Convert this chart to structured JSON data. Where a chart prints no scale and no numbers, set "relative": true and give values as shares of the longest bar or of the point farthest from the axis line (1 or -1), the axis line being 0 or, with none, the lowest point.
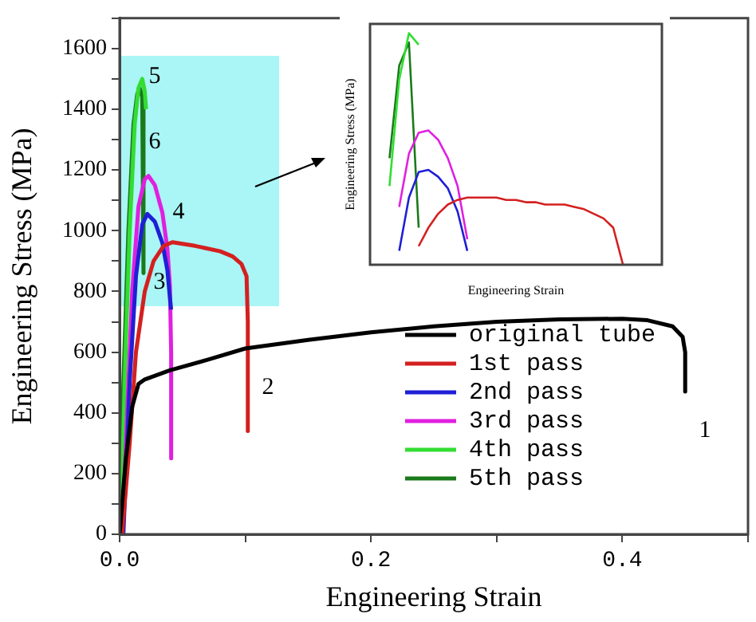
{
  "chart_data": [
    {
      "type": "line",
      "xlabel": "Engineering Strain",
      "ylabel": "Engineering Stress (MPa)",
      "xlim": [
        0,
        0.5
      ],
      "xticks": [
        {
          "value": 0,
          "label": "0.0"
        },
        {
          "value": 0.1,
          "label": null
        },
        {
          "value": 0.2,
          "label": "0.2"
        },
        {
          "value": 0.3,
          "label": null
        },
        {
          "value": 0.4,
          "label": "0.4"
        },
        {
          "value": 0.5,
          "label": null
        }
      ],
      "ylim": [
        0,
        1700
      ],
      "yticks": [
        0,
        {
          "value": 100,
          "label": null
        },
        200,
        {
          "value": 300,
          "label": null
        },
        400,
        {
          "value": 500,
          "label": null
        },
        600,
        {
          "value": 700,
          "label": null
        },
        800,
        {
          "value": 900,
          "label": null
        },
        1000,
        {
          "value": 1100,
          "label": null
        },
        1200,
        {
          "value": 1300,
          "label": null
        },
        1400,
        {
          "value": 1500,
          "label": null
        },
        1600,
        {
          "value": 1700,
          "label": null
        }
      ],
      "legend": "bottom right",
      "series": [
        {
          "name": "original tube",
          "color": "#000000",
          "x": [
            0,
            0.005,
            0.01,
            0.015,
            0.02,
            0.04,
            0.07,
            0.1,
            0.15,
            0.2,
            0.25,
            0.3,
            0.35,
            0.4,
            0.42,
            0.44,
            0.448,
            0.45,
            0.45
          ],
          "values": [
            0,
            250,
            420,
            495,
            510,
            540,
            575,
            612,
            640,
            665,
            685,
            700,
            708,
            710,
            705,
            685,
            650,
            600,
            470
          ]
        },
        {
          "name": "1st pass",
          "color": "#d42020",
          "x": [
            0.002,
            0.008,
            0.013,
            0.02,
            0.027,
            0.035,
            0.042,
            0.06,
            0.08,
            0.09,
            0.097,
            0.101,
            0.102,
            0.102
          ],
          "values": [
            0,
            300,
            600,
            800,
            900,
            950,
            962,
            950,
            932,
            915,
            890,
            850,
            700,
            340
          ]
        },
        {
          "name": "2nd pass",
          "color": "#1f1fd6",
          "x": [
            0.003,
            0.008,
            0.013,
            0.018,
            0.022,
            0.028,
            0.034,
            0.038,
            0.04,
            0.041
          ],
          "values": [
            0,
            500,
            850,
            1020,
            1055,
            1030,
            960,
            870,
            780,
            740
          ]
        },
        {
          "name": "3rd pass",
          "color": "#e020e0",
          "x": [
            0.002,
            0.006,
            0.01,
            0.015,
            0.02,
            0.023,
            0.028,
            0.034,
            0.038,
            0.04,
            0.041,
            0.041
          ],
          "values": [
            0,
            400,
            800,
            1080,
            1170,
            1180,
            1150,
            1060,
            940,
            820,
            600,
            250
          ]
        },
        {
          "name": "4th pass",
          "color": "#33dd33",
          "x": [
            0.001,
            0.004,
            0.008,
            0.012,
            0.015,
            0.018,
            0.02,
            0.021
          ],
          "values": [
            0,
            500,
            1000,
            1350,
            1470,
            1500,
            1460,
            1400
          ]
        },
        {
          "name": "5th pass",
          "color": "#1a7a1a",
          "x": [
            0,
            0.003,
            0.007,
            0.011,
            0.014,
            0.016,
            0.018,
            0.019
          ],
          "values": [
            0,
            500,
            1000,
            1350,
            1450,
            1470,
            1440,
            860
          ]
        }
      ],
      "annotations": [
        "1",
        "2",
        "3",
        "4",
        "5",
        "6"
      ]
    },
    {
      "type": "line",
      "relative": true,
      "xlabel": "Engineering Strain",
      "ylabel": "Engineering Stress (MPa)",
      "categories": [
        null,
        null,
        null,
        null,
        null,
        null,
        null,
        null,
        null,
        null,
        null,
        null,
        null,
        null,
        null,
        null,
        null,
        null,
        null,
        null,
        null,
        null,
        null,
        null,
        null,
        null,
        null,
        null,
        null,
        null,
        null
      ],
      "series": [
        {
          "color": "#d42020",
          "values": [
            null,
            null,
            null,
            null,
            null,
            0.08,
            0.16,
            0.22,
            0.26,
            0.28,
            0.29,
            0.29,
            0.29,
            0.29,
            0.28,
            0.28,
            0.27,
            0.27,
            0.26,
            0.26,
            0.26,
            0.25,
            0.24,
            0.22,
            0.2,
            0.16,
            0,
            null,
            null,
            null,
            null
          ]
        },
        {
          "color": "#1f1fd6",
          "values": [
            null,
            null,
            null,
            0.06,
            0.29,
            0.4,
            0.41,
            0.38,
            0.33,
            0.23,
            0.06,
            null,
            null,
            null,
            null,
            null,
            null,
            null,
            null,
            null,
            null,
            null,
            null,
            null,
            null,
            null,
            null,
            null,
            null,
            null,
            null
          ]
        },
        {
          "color": "#e020e0",
          "values": [
            null,
            null,
            null,
            0.25,
            0.48,
            0.57,
            0.58,
            0.54,
            0.46,
            0.34,
            0.11,
            null,
            null,
            null,
            null,
            null,
            null,
            null,
            null,
            null,
            null,
            null,
            null,
            null,
            null,
            null,
            null,
            null,
            null,
            null,
            null
          ]
        },
        {
          "color": "#33dd33",
          "values": [
            null,
            null,
            0.34,
            0.8,
            1,
            0.95,
            null,
            null,
            null,
            null,
            null,
            null,
            null,
            null,
            null,
            null,
            null,
            null,
            null,
            null,
            null,
            null,
            null,
            null,
            null,
            null,
            null,
            null,
            null,
            null,
            null
          ]
        },
        {
          "color": "#1a7a1a",
          "values": [
            null,
            null,
            0.46,
            0.86,
            0.96,
            0.16,
            null,
            null,
            null,
            null,
            null,
            null,
            null,
            null,
            null,
            null,
            null,
            null,
            null,
            null,
            null,
            null,
            null,
            null,
            null,
            null,
            null,
            null,
            null,
            null,
            null
          ]
        }
      ]
    }
  ]
}
